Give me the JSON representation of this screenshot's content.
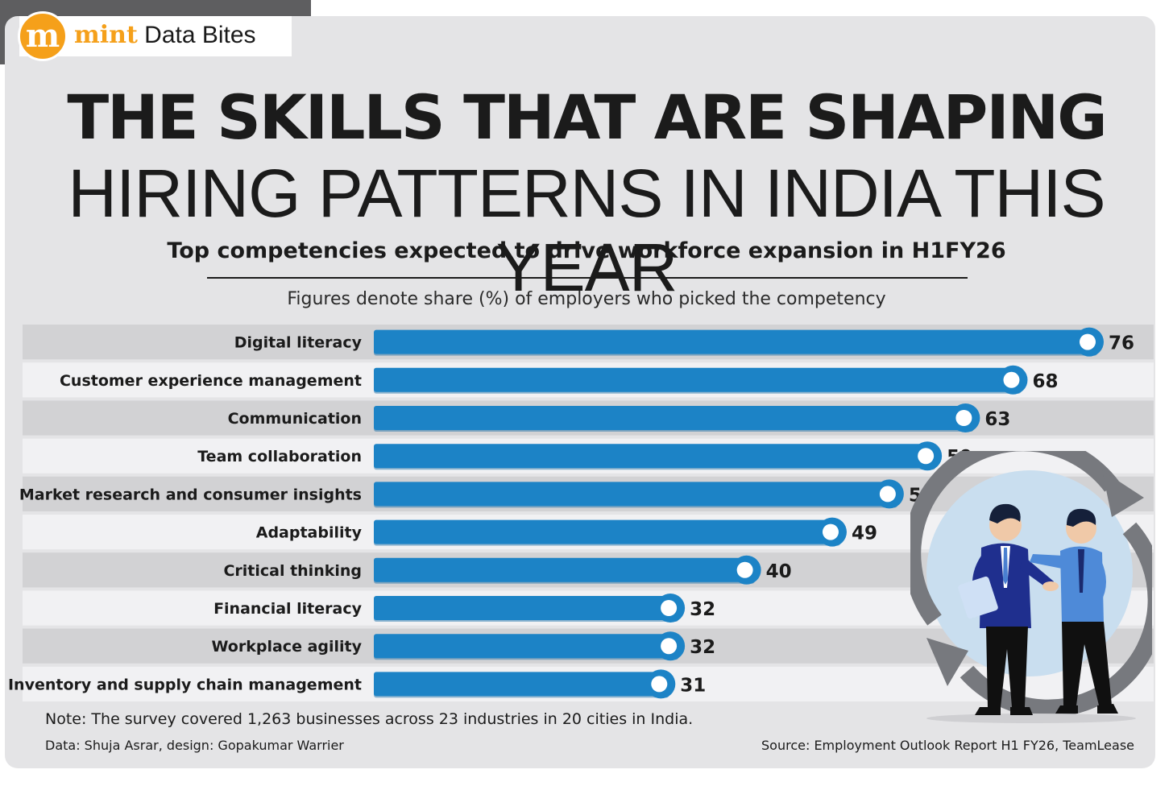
{
  "brand": {
    "logo_letter": "m",
    "name": "mint",
    "section": "Data Bites"
  },
  "headline": {
    "line1": "THE SKILLS THAT ARE SHAPING",
    "line2": "HIRING PATTERNS IN INDIA THIS YEAR"
  },
  "subtitle": "Top competencies expected to drive workforce expansion in H1FY26",
  "description": "Figures denote share (%) of employers who picked the competency",
  "colors": {
    "bar": "#1c83c6",
    "bar_dark": "#156aa3",
    "stripe_dark": "#d2d2d4",
    "stripe_light": "#f1f1f3",
    "accent": "#f5a01a"
  },
  "chart_data": {
    "type": "bar",
    "orientation": "horizontal",
    "categories": [
      "Digital literacy",
      "Customer experience management",
      "Communication",
      "Team collaboration",
      "Market research and consumer insights",
      "Adaptability",
      "Critical thinking",
      "Financial literacy",
      "Workplace agility",
      "Inventory and supply chain management"
    ],
    "values": [
      76,
      68,
      63,
      59,
      55,
      49,
      40,
      32,
      32,
      31
    ],
    "xlim": [
      0,
      76
    ],
    "grid": false,
    "legend": "none",
    "data_labels": true
  },
  "footer": {
    "note": "Note: The survey covered 1,263 businesses across 23 industries in 20 cities in India.",
    "credit": "Data: Shuja Asrar, design: Gopakumar Warrier",
    "source": "Source: Employment Outlook Report H1 FY26, TeamLease"
  },
  "illustration": {
    "icon": "handshake-illustration-icon",
    "cycle_icon": "circular-arrows-icon"
  }
}
